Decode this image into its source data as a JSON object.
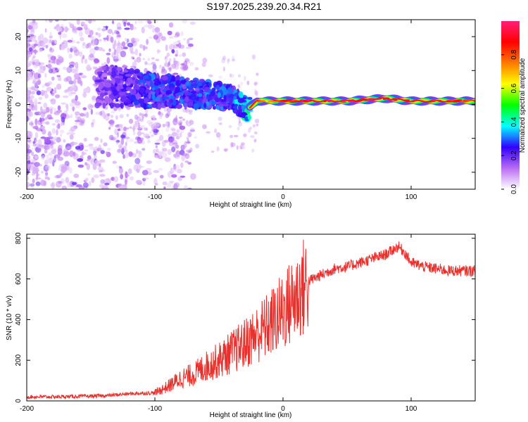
{
  "title": "S197.2025.239.20.34.R21",
  "colors": {
    "snr_line": "#e8302c",
    "bg": "#ffffff",
    "axis": "#000000"
  },
  "chart_data": [
    {
      "type": "heatmap",
      "name": "spectrogram",
      "xlabel": "Height of straight line (km)",
      "ylabel": "Frequency (Hz)",
      "xlim": [
        -200,
        150
      ],
      "ylim": [
        -25,
        25
      ],
      "x_ticks": [
        -200,
        -100,
        0,
        100
      ],
      "y_ticks": [
        20,
        10,
        0,
        -10,
        -20
      ],
      "colorbar": {
        "label": "Normalized spectral amplitude",
        "range": [
          0,
          1
        ],
        "ticks": [
          "0.0",
          "0.2",
          "0.4",
          "0.6",
          "0.8"
        ],
        "colormap": [
          "#ffffff",
          "#b86cf2",
          "#3100ff",
          "#00ffff",
          "#00ff00",
          "#ffff00",
          "#ff7a00",
          "#ff0000",
          "#ff1f7a"
        ]
      },
      "ridge": [
        {
          "x": -140,
          "y": 5.5,
          "amp": 0.2
        },
        {
          "x": -120,
          "y": 5.0,
          "amp": 0.25
        },
        {
          "x": -100,
          "y": 4.0,
          "amp": 0.3
        },
        {
          "x": -80,
          "y": 3.5,
          "amp": 0.28
        },
        {
          "x": -60,
          "y": 3.0,
          "amp": 0.3
        },
        {
          "x": -40,
          "y": 2.0,
          "amp": 0.3
        },
        {
          "x": -28,
          "y": -1.5,
          "amp": 0.45
        },
        {
          "x": -20,
          "y": 1.0,
          "amp": 0.6
        },
        {
          "x": 0,
          "y": 1.0,
          "amp": 0.75
        },
        {
          "x": 20,
          "y": 1.0,
          "amp": 0.85
        },
        {
          "x": 50,
          "y": 1.0,
          "amp": 0.9
        },
        {
          "x": 80,
          "y": 1.8,
          "amp": 0.85
        },
        {
          "x": 100,
          "y": 1.0,
          "amp": 0.8
        },
        {
          "x": 150,
          "y": 1.0,
          "amp": 0.8
        }
      ]
    },
    {
      "type": "line",
      "name": "snr",
      "xlabel": "Height of straight line (km)",
      "ylabel": "SNR (10 * v/v)",
      "xlim": [
        -200,
        150
      ],
      "ylim": [
        0,
        820
      ],
      "x_ticks": [
        -200,
        -100,
        0,
        100
      ],
      "y_ticks": [
        0,
        200,
        400,
        600,
        800
      ],
      "series": [
        {
          "name": "SNR",
          "x": [
            -200,
            -180,
            -160,
            -140,
            -120,
            -100,
            -90,
            -80,
            -70,
            -60,
            -50,
            -40,
            -30,
            -20,
            -10,
            0,
            10,
            20,
            30,
            40,
            50,
            60,
            70,
            80,
            90,
            95,
            100,
            110,
            120,
            130,
            140,
            150
          ],
          "values": [
            20,
            20,
            22,
            25,
            35,
            40,
            70,
            110,
            130,
            170,
            200,
            240,
            280,
            330,
            380,
            440,
            510,
            590,
            620,
            650,
            660,
            680,
            700,
            720,
            760,
            730,
            680,
            660,
            650,
            640,
            640,
            640
          ]
        }
      ]
    }
  ]
}
